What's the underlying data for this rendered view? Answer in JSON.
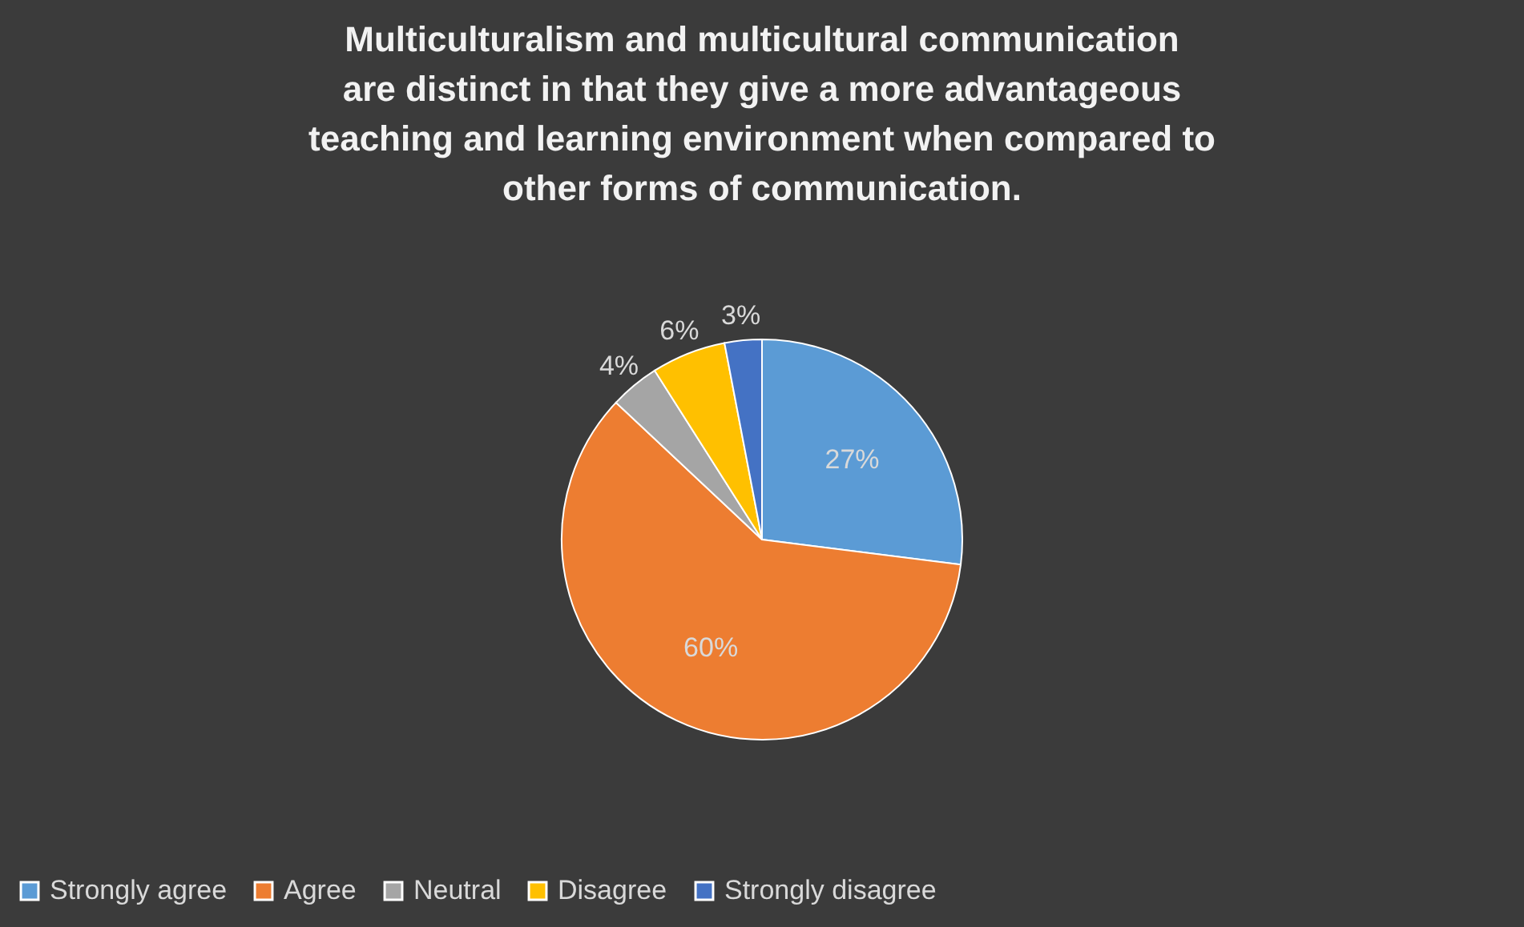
{
  "chart_data": {
    "type": "pie",
    "title": "Multiculturalism and multicultural communication are distinct in that they give a more advantageous teaching and learning environment when compared to other forms of communication.",
    "categories": [
      "Strongly agree",
      "Agree",
      "Neutral",
      "Disagree",
      "Strongly disagree"
    ],
    "values": [
      27,
      60,
      4,
      6,
      3
    ],
    "colors": [
      "#5b9bd5",
      "#ed7d31",
      "#a5a5a5",
      "#ffc000",
      "#4472c4"
    ],
    "value_labels": [
      "27%",
      "60%",
      "4%",
      "6%",
      "3%"
    ],
    "legend": "bottom"
  }
}
